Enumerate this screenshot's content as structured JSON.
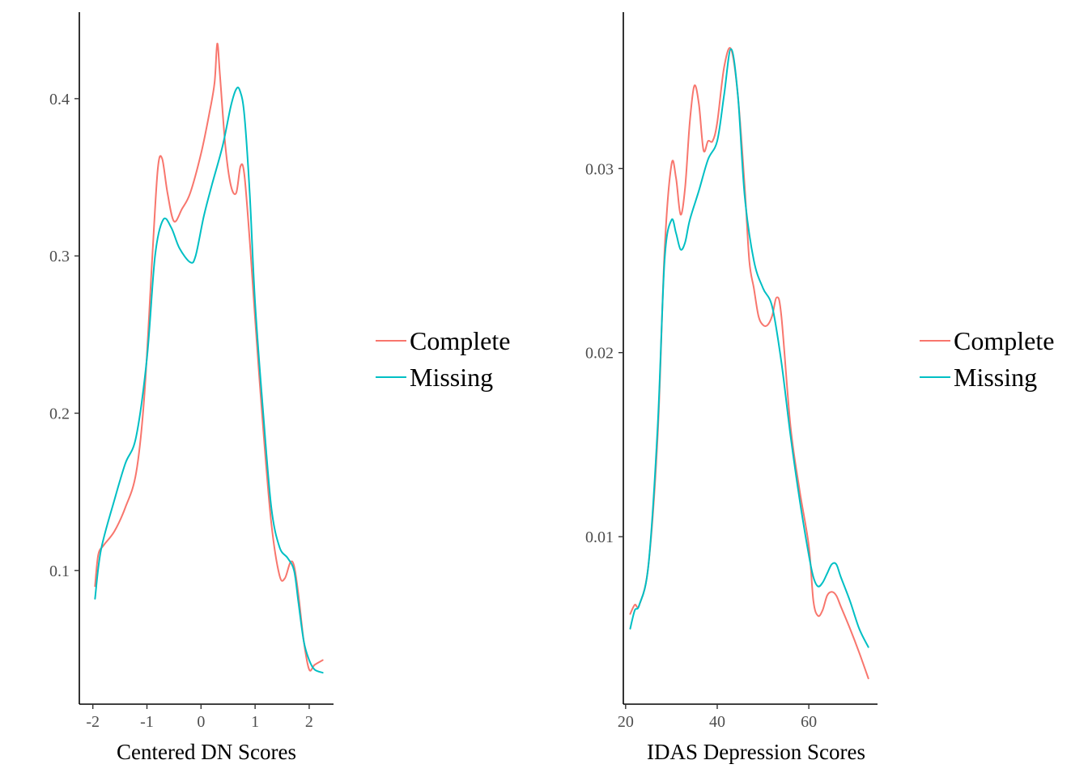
{
  "colors": {
    "complete": "#F8766D",
    "missing": "#00BFC4",
    "axis": "#000000",
    "tick_text": "#4D4D4D"
  },
  "chart_data": [
    {
      "type": "line",
      "title": "",
      "xlabel": "Centered DN Scores",
      "ylabel": "",
      "xlim": [
        -2.25,
        2.45
      ],
      "ylim": [
        0.015,
        0.455
      ],
      "x_ticks": [
        -2,
        -1,
        0,
        1,
        2
      ],
      "x_tick_labels": [
        "-2",
        "-1",
        "0",
        "1",
        "2"
      ],
      "y_ticks": [
        0.1,
        0.2,
        0.3,
        0.4
      ],
      "y_tick_labels": [
        "0.1",
        "0.2",
        "0.3",
        "0.4"
      ],
      "grid": false,
      "legend_position": "right",
      "series": [
        {
          "name": "Complete",
          "color": "#F8766D",
          "x": [
            -1.96,
            -1.9,
            -1.8,
            -1.6,
            -1.4,
            -1.2,
            -1.05,
            -0.9,
            -0.8,
            -0.72,
            -0.62,
            -0.5,
            -0.35,
            -0.2,
            0.0,
            0.15,
            0.25,
            0.3,
            0.35,
            0.45,
            0.55,
            0.65,
            0.73,
            0.8,
            0.9,
            1.0,
            1.15,
            1.3,
            1.45,
            1.55,
            1.65,
            1.72,
            1.8,
            1.9,
            2.0,
            2.1,
            2.25
          ],
          "y": [
            0.09,
            0.11,
            0.116,
            0.125,
            0.14,
            0.162,
            0.21,
            0.3,
            0.355,
            0.362,
            0.34,
            0.322,
            0.33,
            0.34,
            0.365,
            0.39,
            0.41,
            0.435,
            0.415,
            0.37,
            0.345,
            0.34,
            0.357,
            0.352,
            0.31,
            0.26,
            0.19,
            0.13,
            0.097,
            0.095,
            0.105,
            0.103,
            0.085,
            0.055,
            0.037,
            0.04,
            0.043
          ]
        },
        {
          "name": "Missing",
          "color": "#00BFC4",
          "x": [
            -1.96,
            -1.85,
            -1.6,
            -1.4,
            -1.2,
            -1.0,
            -0.85,
            -0.7,
            -0.55,
            -0.4,
            -0.2,
            -0.1,
            0.05,
            0.2,
            0.4,
            0.55,
            0.65,
            0.72,
            0.8,
            0.9,
            1.0,
            1.15,
            1.3,
            1.45,
            1.6,
            1.72,
            1.8,
            1.9,
            2.0,
            2.1,
            2.25
          ],
          "y": [
            0.082,
            0.113,
            0.145,
            0.168,
            0.185,
            0.235,
            0.3,
            0.323,
            0.318,
            0.305,
            0.296,
            0.3,
            0.325,
            0.345,
            0.37,
            0.395,
            0.406,
            0.405,
            0.39,
            0.34,
            0.27,
            0.2,
            0.14,
            0.115,
            0.108,
            0.1,
            0.08,
            0.055,
            0.043,
            0.037,
            0.035
          ]
        }
      ]
    },
    {
      "type": "line",
      "title": "",
      "xlabel": "IDAS Depression Scores",
      "ylabel": "",
      "xlim": [
        19.5,
        75
      ],
      "ylim": [
        0.0009,
        0.0385
      ],
      "x_ticks": [
        20,
        40,
        60
      ],
      "x_tick_labels": [
        "20",
        "40",
        "60"
      ],
      "y_ticks": [
        0.01,
        0.02,
        0.03
      ],
      "y_tick_labels": [
        "0.01",
        "0.02",
        "0.03"
      ],
      "grid": false,
      "legend_position": "right",
      "series": [
        {
          "name": "Complete",
          "color": "#F8766D",
          "x": [
            21,
            22,
            23,
            25,
            27,
            28.5,
            30,
            31,
            32,
            33,
            34,
            35,
            36,
            37,
            38,
            39,
            40,
            41.5,
            43,
            44.5,
            46,
            47,
            48,
            49,
            50,
            51,
            52,
            53,
            54,
            56,
            58,
            60,
            61,
            62,
            63,
            64,
            65,
            66,
            67,
            69,
            71,
            73
          ],
          "y": [
            0.0058,
            0.0063,
            0.0063,
            0.0085,
            0.0155,
            0.0255,
            0.0302,
            0.0295,
            0.0275,
            0.029,
            0.0325,
            0.0345,
            0.0335,
            0.031,
            0.0315,
            0.0315,
            0.0325,
            0.0355,
            0.0365,
            0.034,
            0.029,
            0.025,
            0.0235,
            0.022,
            0.0215,
            0.0215,
            0.022,
            0.023,
            0.022,
            0.016,
            0.0125,
            0.0095,
            0.0065,
            0.0057,
            0.006,
            0.0068,
            0.007,
            0.0068,
            0.0062,
            0.005,
            0.0037,
            0.0023
          ]
        },
        {
          "name": "Missing",
          "color": "#00BFC4",
          "x": [
            21,
            22,
            23,
            25,
            27,
            28.5,
            30,
            31,
            32,
            33,
            34,
            36,
            38,
            40,
            41.5,
            43,
            44.5,
            46,
            48,
            50,
            52,
            54,
            56,
            58,
            60,
            61,
            62,
            63,
            64,
            65,
            66,
            67,
            69,
            71,
            73
          ],
          "y": [
            0.005,
            0.006,
            0.0063,
            0.0085,
            0.016,
            0.025,
            0.0272,
            0.0265,
            0.0256,
            0.026,
            0.0272,
            0.0288,
            0.0305,
            0.0315,
            0.034,
            0.0365,
            0.034,
            0.0285,
            0.025,
            0.0235,
            0.0225,
            0.0195,
            0.0155,
            0.012,
            0.009,
            0.0078,
            0.0073,
            0.0075,
            0.008,
            0.0085,
            0.0085,
            0.0078,
            0.0065,
            0.005,
            0.004
          ]
        }
      ]
    }
  ]
}
